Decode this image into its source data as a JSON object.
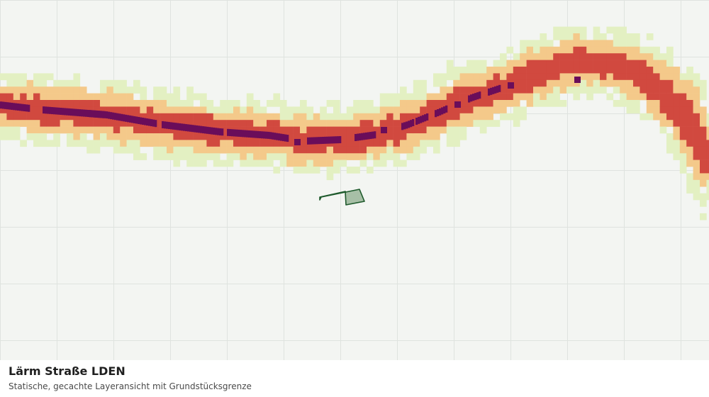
{
  "map": {
    "title": "Lärm Straße LDEN",
    "subtitle": "Statische, gecachte Layeransicht mit Grundstücksgrenze",
    "layer": "noise-lden",
    "colors": {
      "background": "#f3f5f2",
      "grid": "#dfe3df",
      "noise_lowest": "#e3f0c2",
      "noise_low": "#f4c98a",
      "noise_high": "#d1493f",
      "noise_highest": "#6a0d5a",
      "parcel_fill": "#a7bfa6",
      "parcel_stroke": "#1e5a2c"
    },
    "noise_classes": [
      "lowest",
      "low",
      "high",
      "highest"
    ]
  }
}
